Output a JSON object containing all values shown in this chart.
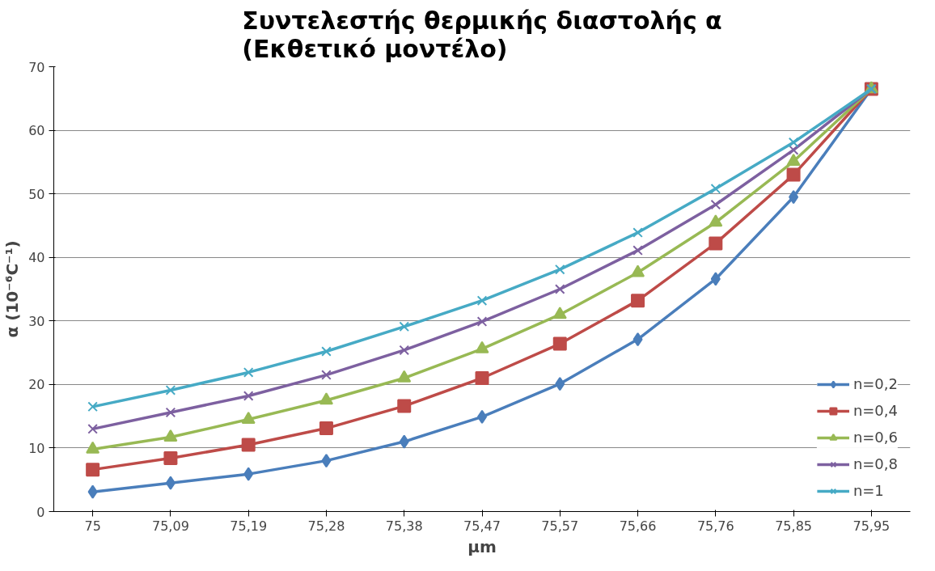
{
  "chart_data": {
    "type": "line",
    "title": "Συντελεστής θερμικής διαστολής α\n(Εκθετικό μοντέλο)",
    "xlabel": "μm",
    "ylabel": "α (10⁻⁶C⁻¹)",
    "categories": [
      "75",
      "75,09",
      "75,19",
      "75,28",
      "75,38",
      "75,47",
      "75,57",
      "75,66",
      "75,76",
      "75,85",
      "75,95"
    ],
    "ylim": [
      0,
      70
    ],
    "yticks": [
      0,
      10,
      20,
      30,
      40,
      50,
      60,
      70
    ],
    "grid": "y",
    "legend": "bottom right",
    "line_style": "solid",
    "series": [
      {
        "name": "n=0,2",
        "color": "#4a7ebb",
        "marker": "diamond",
        "values": [
          3.1,
          4.5,
          5.9,
          8.0,
          11.0,
          14.9,
          20.1,
          27.1,
          36.6,
          49.5,
          66.5
        ]
      },
      {
        "name": "n=0,4",
        "color": "#be4b48",
        "marker": "square",
        "values": [
          6.6,
          8.4,
          10.5,
          13.1,
          16.6,
          21.0,
          26.4,
          33.2,
          42.2,
          53.0,
          66.5
        ]
      },
      {
        "name": "n=0,6",
        "color": "#98b954",
        "marker": "triangle",
        "values": [
          9.8,
          11.7,
          14.5,
          17.5,
          21.0,
          25.6,
          31.0,
          37.6,
          45.5,
          55.1,
          66.5
        ]
      },
      {
        "name": "n=0,8",
        "color": "#7d60a0",
        "marker": "cross",
        "values": [
          13.0,
          15.6,
          18.2,
          21.5,
          25.4,
          29.9,
          35.0,
          41.1,
          48.3,
          56.9,
          66.5
        ]
      },
      {
        "name": "n=1",
        "color": "#46aac5",
        "marker": "cross",
        "values": [
          16.5,
          19.1,
          21.9,
          25.2,
          29.1,
          33.2,
          38.1,
          43.9,
          50.8,
          58.1,
          66.5
        ]
      }
    ]
  }
}
